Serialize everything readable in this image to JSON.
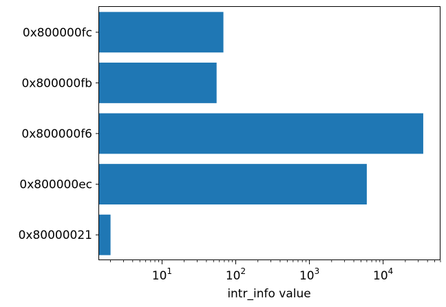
{
  "chart_data": {
    "type": "bar",
    "orientation": "horizontal",
    "categories": [
      "0x80000021",
      "0x800000ec",
      "0x800000f6",
      "0x800000fb",
      "0x800000fc"
    ],
    "values": [
      2,
      6000,
      35000,
      55,
      68
    ],
    "xlabel": "intr_info value",
    "ylabel": "",
    "title": "",
    "xscale": "log",
    "xlim": [
      1.4,
      60000
    ],
    "x_major_ticks": [
      {
        "value": 10,
        "base": "10",
        "exp": "1"
      },
      {
        "value": 100,
        "base": "10",
        "exp": "2"
      },
      {
        "value": 1000,
        "base": "10",
        "exp": "3"
      },
      {
        "value": 10000,
        "base": "10",
        "exp": "4"
      }
    ],
    "grid": false,
    "bar_color": "#1f77b4"
  }
}
